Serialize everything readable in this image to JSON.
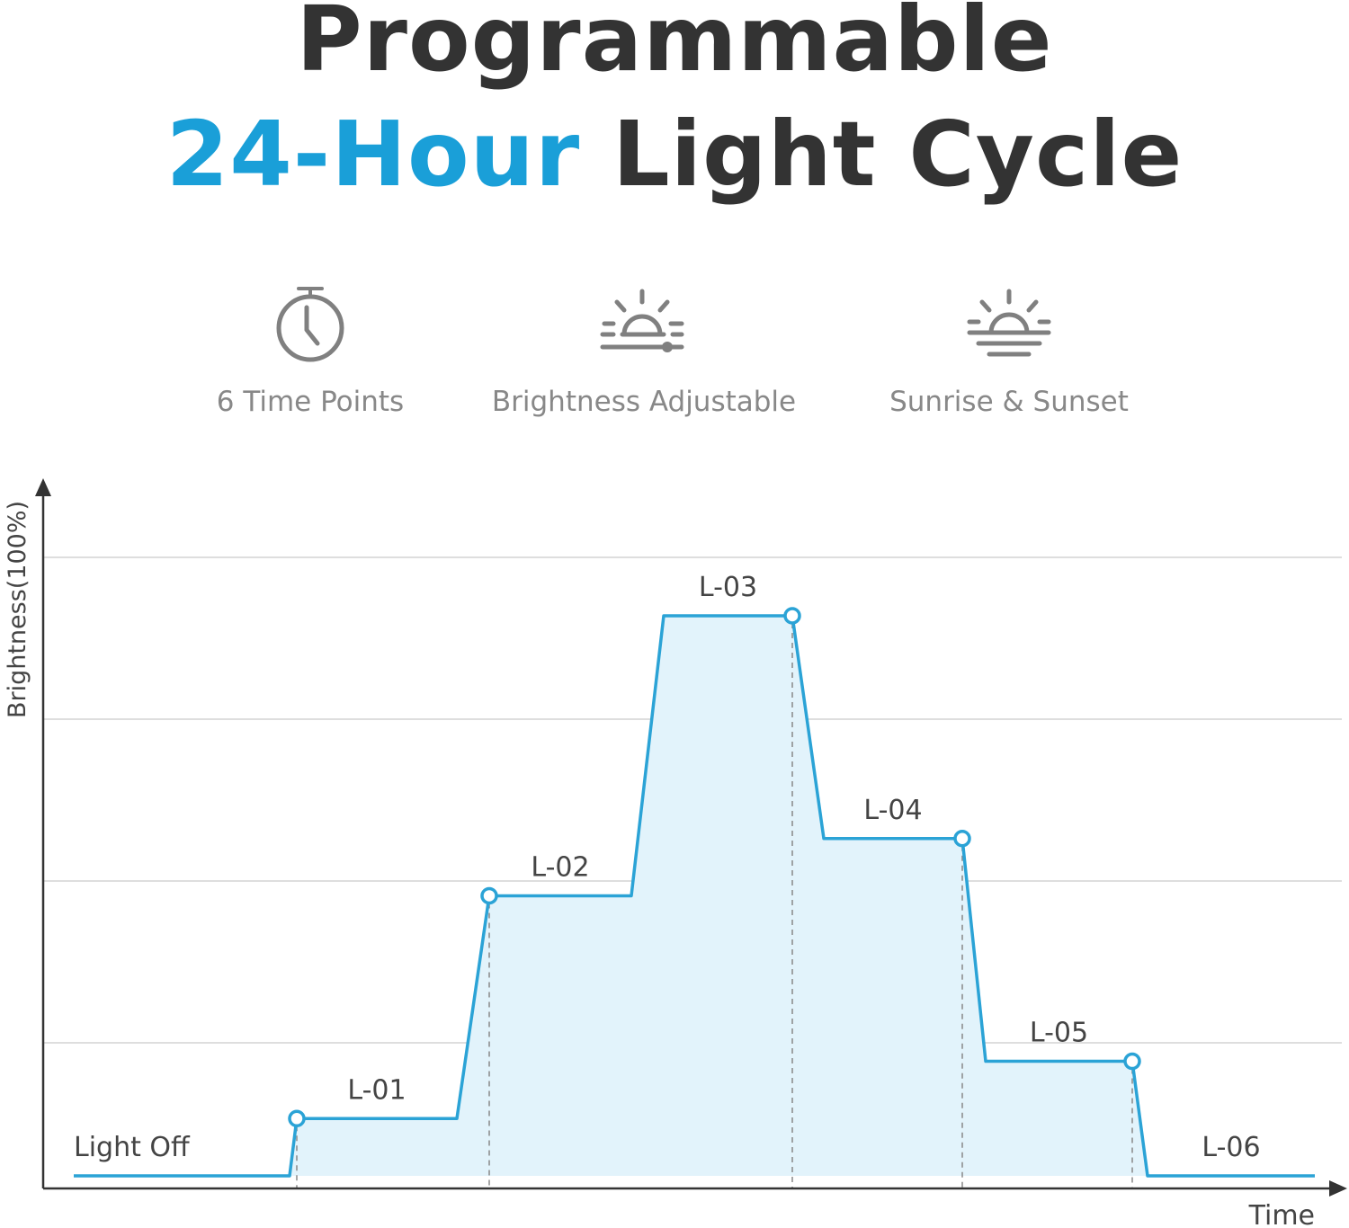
{
  "title": {
    "line1": "Programmable",
    "line2_accent": "24-Hour",
    "line2_rest": "Light Cycle"
  },
  "features": [
    {
      "label": "6 Time Points",
      "icon": "stopwatch-icon"
    },
    {
      "label": "Brightness Adjustable",
      "icon": "sun-brightness-icon"
    },
    {
      "label": "Sunrise & Sunset",
      "icon": "sunrise-sunset-icon"
    }
  ],
  "colors": {
    "accent": "#1a9fd8",
    "line": "#2ba3d6",
    "fill": "#e2f3fb",
    "text": "#333333",
    "muted": "#888888"
  },
  "chart_data": {
    "type": "area",
    "xlabel": "Time",
    "ylabel": "Brightness(100%)",
    "ylim": [
      0,
      100
    ],
    "grid": true,
    "x": [
      "Light Off",
      "L-01",
      "L-02",
      "L-03",
      "L-04",
      "L-05",
      "L-06"
    ],
    "values": [
      0,
      9,
      44,
      88,
      53,
      18,
      0
    ],
    "labels": [
      "Light Off",
      "L-01",
      "L-02",
      "L-03",
      "L-04",
      "L-05",
      "L-06"
    ]
  }
}
